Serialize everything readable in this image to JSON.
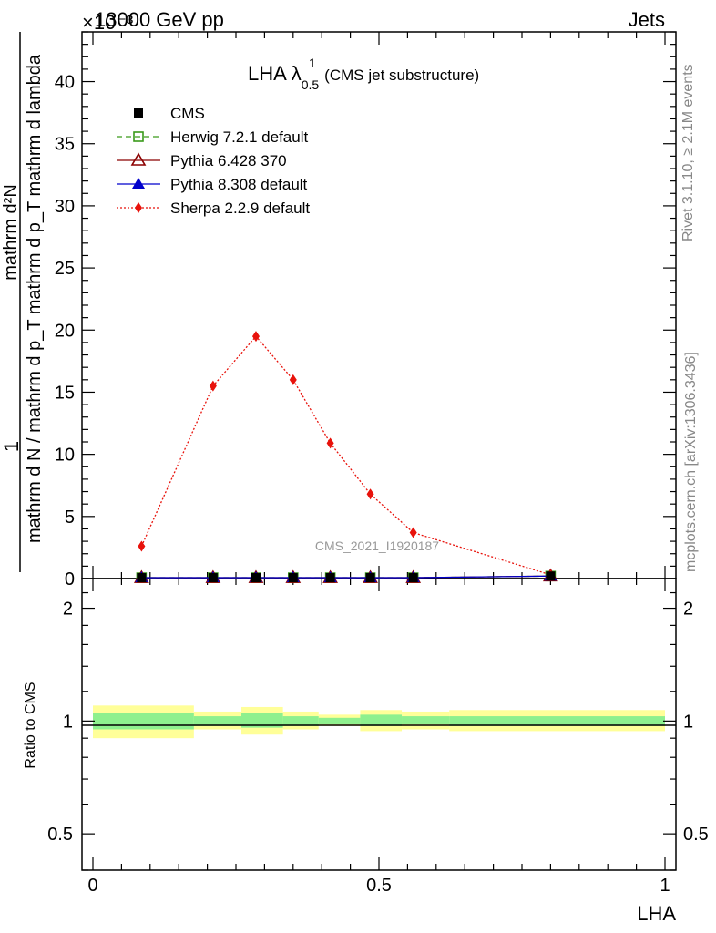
{
  "header": {
    "beam_label": "13000 GeV pp",
    "category_label": "Jets",
    "exponent_label": "×10⁻³"
  },
  "side_labels": {
    "rivet": "Rivet 3.1.10, ≥ 2.1M events",
    "mcplots": "mcplots.cern.ch [arXiv:1306.3436]"
  },
  "analysis_id": "CMS_2021_I1920187",
  "chart_data": {
    "type": "line",
    "title": "LHA λ",
    "title_superscript": "1",
    "title_subscript": "0.5",
    "title_suffix": "(CMS jet substructure)",
    "ylabel_top": "1",
    "ylabel_numerator": "mathrm d²N",
    "ylabel_denominator": "mathrm d N / mathrm d p_T mathrm d p_T mathrm d lambda",
    "xlabel": "LHA",
    "ratio_ylabel": "Ratio to CMS",
    "xlim": [
      0,
      1
    ],
    "ylim": [
      0,
      44
    ],
    "y_scale": "×10⁻³",
    "x_ticks": [
      {
        "v": 0,
        "label": "0"
      },
      {
        "v": 0.5,
        "label": "0.5"
      },
      {
        "v": 1,
        "label": "1"
      }
    ],
    "y_ticks": [
      {
        "v": 0,
        "label": "0"
      },
      {
        "v": 5,
        "label": "5"
      },
      {
        "v": 10,
        "label": "10"
      },
      {
        "v": 15,
        "label": "15"
      },
      {
        "v": 20,
        "label": "20"
      },
      {
        "v": 25,
        "label": "25"
      },
      {
        "v": 30,
        "label": "30"
      },
      {
        "v": 35,
        "label": "35"
      },
      {
        "v": 40,
        "label": "40"
      }
    ],
    "ratio_ylim": [
      0.4,
      2.4
    ],
    "ratio_scale": "log",
    "ratio_ticks": [
      {
        "v": 0.5,
        "label": "0.5"
      },
      {
        "v": 1,
        "label": "1"
      },
      {
        "v": 2,
        "label": "2"
      }
    ],
    "legend_position": "top-left",
    "bin_edges": [
      0,
      0.17,
      0.25,
      0.32,
      0.38,
      0.45,
      0.52,
      0.6,
      1.0
    ],
    "bin_centers": [
      0.085,
      0.21,
      0.285,
      0.35,
      0.415,
      0.485,
      0.56,
      0.8
    ],
    "series": [
      {
        "name": "CMS",
        "color": "#000000",
        "marker": "square-filled",
        "line": "none",
        "values": [
          0.07,
          0.07,
          0.07,
          0.07,
          0.07,
          0.07,
          0.07,
          0.2
        ]
      },
      {
        "name": "Herwig 7.2.1 default",
        "color": "#3a9a1a",
        "marker": "square-open",
        "line": "dashed",
        "values": [
          0.07,
          0.07,
          0.07,
          0.07,
          0.07,
          0.07,
          0.07,
          0.2
        ]
      },
      {
        "name": "Pythia 6.428 370",
        "color": "#8b0000",
        "marker": "triangle-open",
        "line": "solid",
        "values": [
          0.07,
          0.07,
          0.07,
          0.07,
          0.07,
          0.07,
          0.07,
          0.2
        ]
      },
      {
        "name": "Pythia 8.308 default",
        "color": "#0000cc",
        "marker": "triangle-filled",
        "line": "solid",
        "values": [
          0.07,
          0.07,
          0.07,
          0.07,
          0.07,
          0.07,
          0.07,
          0.2
        ]
      },
      {
        "name": "Sherpa 2.2.9 default",
        "color": "#e8120b",
        "marker": "diamond-filled",
        "line": "dotted",
        "values": [
          2.6,
          15.5,
          19.5,
          16.0,
          10.9,
          6.8,
          3.7,
          0.3
        ]
      }
    ],
    "ratio_bands": {
      "inner_color": "#8ef08e",
      "outer_color": "#ffff99",
      "inner": [
        [
          0.95,
          1.05
        ],
        [
          0.97,
          1.03
        ],
        [
          0.96,
          1.05
        ],
        [
          0.97,
          1.03
        ],
        [
          0.98,
          1.02
        ],
        [
          0.97,
          1.04
        ],
        [
          0.98,
          1.03
        ],
        [
          0.97,
          1.03
        ]
      ],
      "outer": [
        [
          0.9,
          1.1
        ],
        [
          0.95,
          1.06
        ],
        [
          0.92,
          1.09
        ],
        [
          0.95,
          1.06
        ],
        [
          0.97,
          1.04
        ],
        [
          0.94,
          1.07
        ],
        [
          0.95,
          1.06
        ],
        [
          0.94,
          1.07
        ]
      ]
    }
  }
}
